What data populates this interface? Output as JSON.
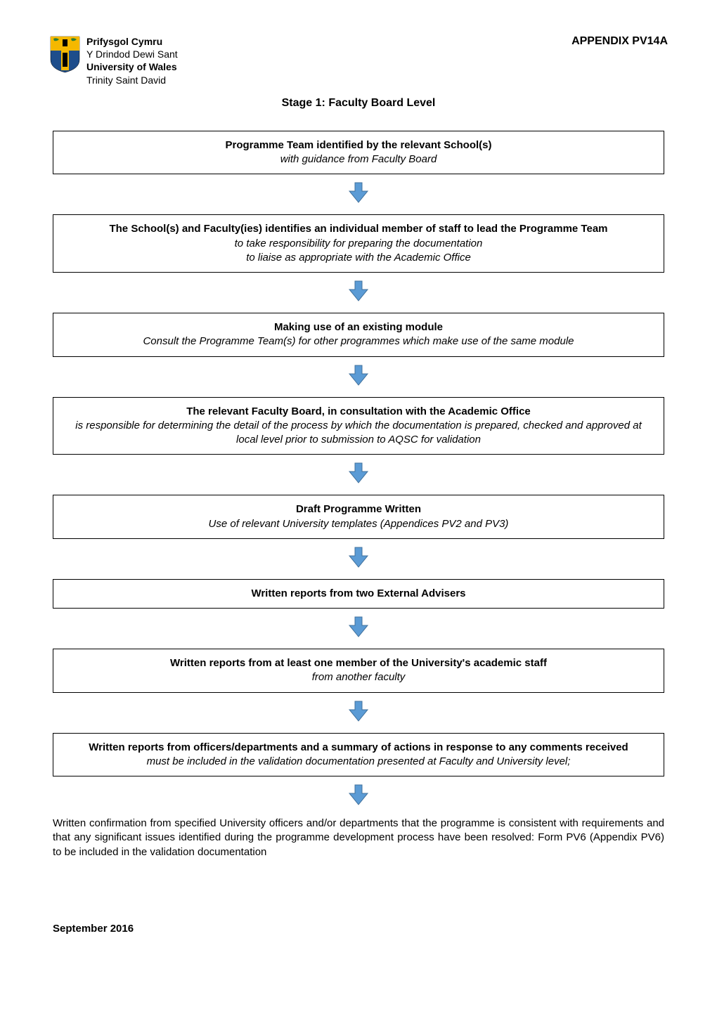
{
  "header": {
    "logo": {
      "line1": "Prifysgol Cymru",
      "line2": "Y Drindod Dewi Sant",
      "line3": "University of Wales",
      "line4": "Trinity Saint David",
      "shield_colors": {
        "blue": "#1e4d8b",
        "yellow": "#f5b800",
        "black": "#000000",
        "leaf_green": "#2e7d32"
      }
    },
    "appendix": "APPENDIX PV14A"
  },
  "stage_title": "Stage 1: Faculty Board Level",
  "arrow": {
    "fill": "#5b9bd5",
    "stroke": "#41719c",
    "stroke_width": 1
  },
  "boxes": [
    {
      "title": "Programme Team identified by the relevant School(s)",
      "subs": [
        "with guidance from Faculty Board"
      ]
    },
    {
      "title": "The School(s) and Faculty(ies) identifies an individual member of staff to lead the Programme Team",
      "subs": [
        "to take responsibility for preparing the documentation",
        "to liaise as appropriate with the Academic Office"
      ]
    },
    {
      "title": "Making use of an existing module",
      "subs": [
        "Consult the Programme Team(s) for other programmes which make use of the same module"
      ]
    },
    {
      "title": "The relevant Faculty Board, in consultation with the Academic Office",
      "subs": [
        "is responsible for determining the detail of the process by which the documentation is prepared, checked and approved at local level prior to submission to AQSC for validation"
      ]
    },
    {
      "title": "Draft Programme Written",
      "subs": [
        "Use of relevant University templates (Appendices PV2 and PV3)"
      ]
    },
    {
      "title": "Written reports from two External Advisers",
      "subs": []
    },
    {
      "title": "Written reports from at least one member of the University's academic staff",
      "subs": [
        "from another faculty"
      ]
    },
    {
      "title": "Written reports from officers/departments and a summary of actions in response to any comments received",
      "subs": [
        "must be included in the validation documentation presented at Faculty and University level;"
      ]
    }
  ],
  "final_paragraph": "Written confirmation from specified University officers and/or departments that the programme is consistent with requirements and that any significant issues identified during the programme development process have been resolved: Form PV6 (Appendix PV6) to be included in the validation documentation",
  "footer_date": "September 2016"
}
